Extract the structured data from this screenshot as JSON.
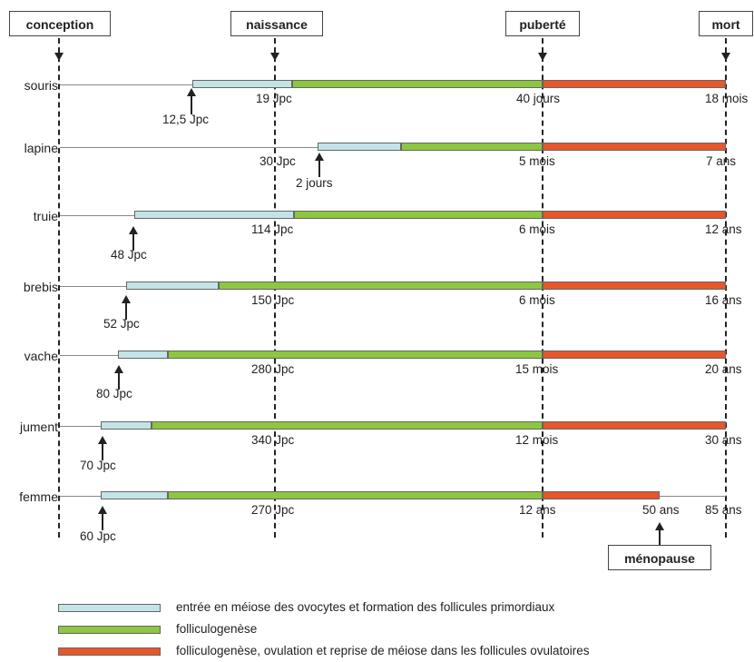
{
  "milestones": {
    "conception": "conception",
    "naissance": "naissance",
    "puberte": "puberté",
    "mort": "mort",
    "menopause": "ménopause"
  },
  "rows": [
    {
      "species": "souris",
      "onset": "12,5 Jpc",
      "birth": "19 Jpc",
      "puberty": "40 jours",
      "death": "18 mois"
    },
    {
      "species": "lapine",
      "onset": "2 jours",
      "birth": "30 Jpc",
      "puberty": "5 mois",
      "death": "7 ans"
    },
    {
      "species": "truie",
      "onset": "48 Jpc",
      "birth": "114 Jpc",
      "puberty": "6 mois",
      "death": "12 ans"
    },
    {
      "species": "brebis",
      "onset": "52 Jpc",
      "birth": "150 Jpc",
      "puberty": "6 mois",
      "death": "16 ans"
    },
    {
      "species": "vache",
      "onset": "80 Jpc",
      "birth": "280 Jpc",
      "puberty": "15 mois",
      "death": "20 ans"
    },
    {
      "species": "jument",
      "onset": "70 Jpc",
      "birth": "340 Jpc",
      "puberty": "12 mois",
      "death": "30 ans"
    },
    {
      "species": "femme",
      "onset": "60 Jpc",
      "birth": "270 Jpc",
      "puberty": "12 ans",
      "menopause_age": "50 ans",
      "death": "85 ans"
    }
  ],
  "legend": [
    {
      "color": "#c3e4e6",
      "text": "entrée en méiose des ovocytes et formation des follicules primordiaux"
    },
    {
      "color": "#8dc63f",
      "text": "folliculogenèse"
    },
    {
      "color": "#e8562a",
      "text": "folliculogenèse, ovulation et reprise de méiose dans les follicules ovulatoires"
    }
  ]
}
